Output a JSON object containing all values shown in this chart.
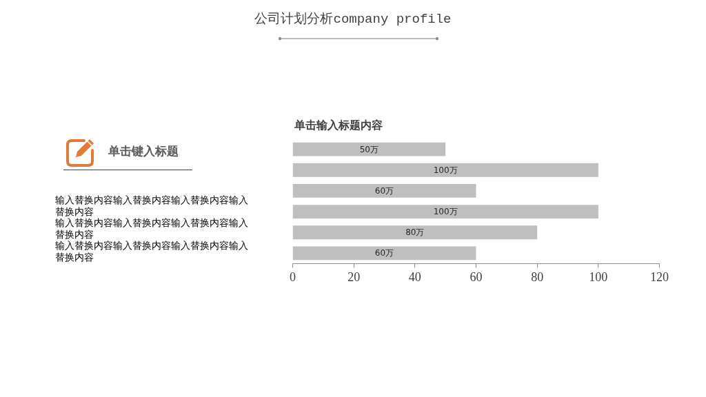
{
  "chart_data": [
    {
      "type": "other",
      "title": "公司计划分析company profile"
    },
    {
      "type": "other",
      "title": "单击键入标题",
      "annotations": [
        "输入替换内容输入替换内容输入替换内容输入替换内容",
        "输入替换内容输入替换内容输入替换内容输入替换内容",
        "输入替换内容输入替换内容输入替换内容输入替换内容"
      ]
    },
    {
      "type": "bar",
      "orientation": "horizontal",
      "title": "单击输入标题内容",
      "categories": [
        null,
        null,
        null,
        null,
        null,
        null
      ],
      "values": [
        50,
        100,
        60,
        100,
        80,
        60
      ],
      "value_labels": [
        "50万",
        "100万",
        "60万",
        "100万",
        "80万",
        "60万"
      ],
      "color": "#bfbfbf",
      "xlim": [
        0,
        120
      ],
      "xticks": [
        0,
        20,
        40,
        60,
        80,
        100,
        120
      ]
    }
  ]
}
